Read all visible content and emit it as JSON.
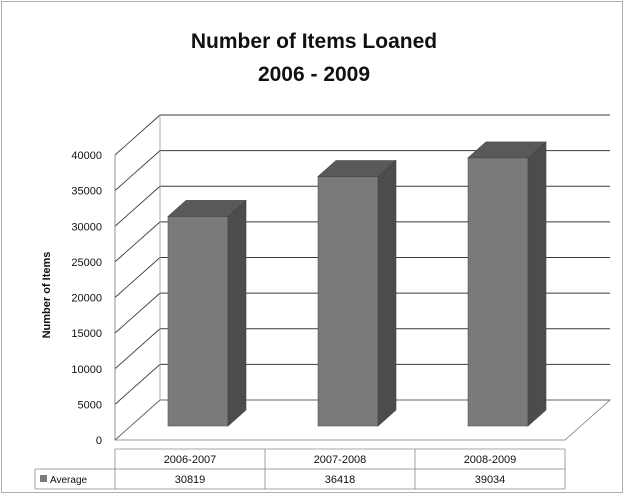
{
  "chart_data": {
    "type": "bar",
    "title_lines": [
      "Number of Items Loaned",
      "2006 - 2009"
    ],
    "ylabel": "Number of Items",
    "categories": [
      "2006-2007",
      "2007-2008",
      "2008-2009"
    ],
    "series": [
      {
        "name": "Average",
        "values": [
          30819,
          36418,
          39034
        ]
      }
    ],
    "ylim": [
      0,
      40000
    ],
    "yticks": [
      0,
      5000,
      10000,
      15000,
      20000,
      25000,
      30000,
      35000,
      40000
    ],
    "grid": true,
    "three_d": true,
    "data_table": true,
    "colors": {
      "bar_front": "#7a7a7a",
      "bar_side": "#4c4c4c",
      "bar_top": "#595959",
      "grid": "#3a3a3a"
    }
  }
}
